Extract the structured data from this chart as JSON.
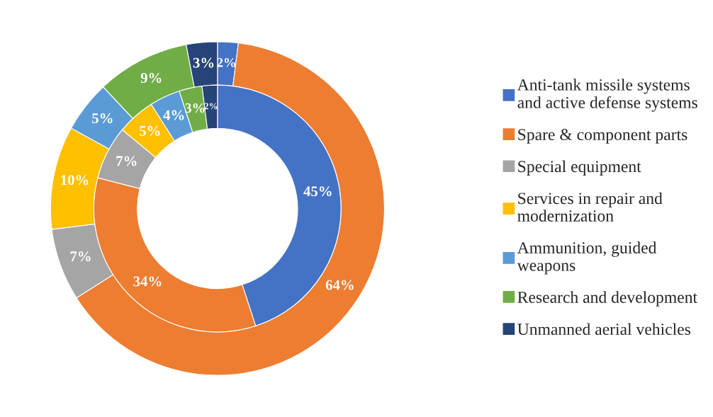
{
  "chart_data": {
    "type": "donut",
    "categories": [
      "Anti-tank missile systems\nand active defense systems",
      "Spare & component parts",
      "Special equipment",
      "Services in repair and\nmodernization",
      "Ammunition, guided\nweapons",
      "Research and development",
      "Unmanned aerial vehicles"
    ],
    "colors": [
      "#4472c4",
      "#ed7d31",
      "#a5a5a5",
      "#ffc000",
      "#5b9bd5",
      "#70ad47",
      "#264478"
    ],
    "series": [
      {
        "values": [
          2,
          64,
          7,
          10,
          5,
          9,
          3
        ],
        "value_labels": [
          "2%",
          "64%",
          "7%",
          "10%",
          "5%",
          "9%",
          "3%"
        ]
      },
      {
        "values": [
          45,
          34,
          7,
          5,
          4,
          3,
          2
        ],
        "value_labels": [
          "45%",
          "34%",
          "7%",
          "5%",
          "4%",
          "3%",
          "2%"
        ]
      }
    ],
    "legend": "right"
  }
}
